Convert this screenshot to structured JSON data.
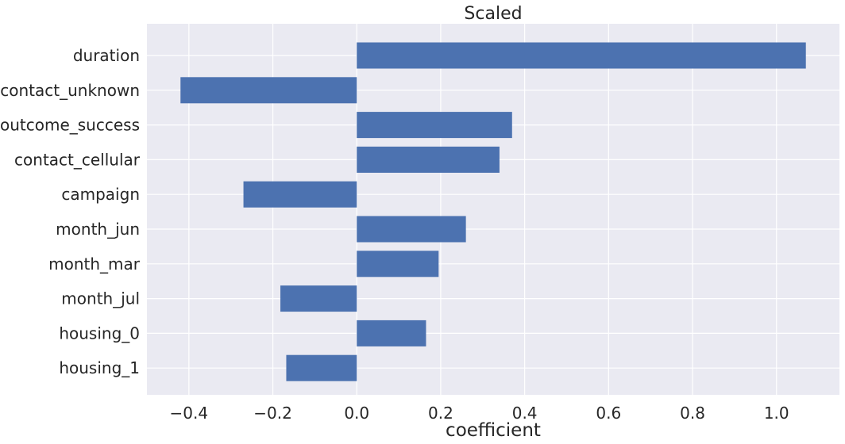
{
  "chart_data": {
    "type": "bar",
    "orientation": "horizontal",
    "title": "Scaled",
    "xlabel": "coefficient",
    "ylabel": "",
    "categories": [
      "duration",
      "contact_unknown",
      "poutcome_success",
      "contact_cellular",
      "campaign",
      "month_jun",
      "month_mar",
      "month_jul",
      "housing_0",
      "housing_1"
    ],
    "values": [
      1.07,
      -0.42,
      0.37,
      0.34,
      -0.27,
      0.26,
      0.195,
      -0.182,
      0.165,
      -0.168
    ],
    "xlim": [
      -0.5,
      1.15
    ],
    "xticks": [
      -0.4,
      -0.2,
      0.0,
      0.2,
      0.4,
      0.6,
      0.8,
      1.0
    ],
    "xtick_labels": [
      "−0.4",
      "−0.2",
      "0.0",
      "0.2",
      "0.4",
      "0.6",
      "0.8",
      "1.0"
    ],
    "grid": true,
    "colors": {
      "bar": "#4c72b0",
      "plot_background": "#eaeaf2",
      "grid": "#ffffff",
      "text": "#262626"
    }
  }
}
